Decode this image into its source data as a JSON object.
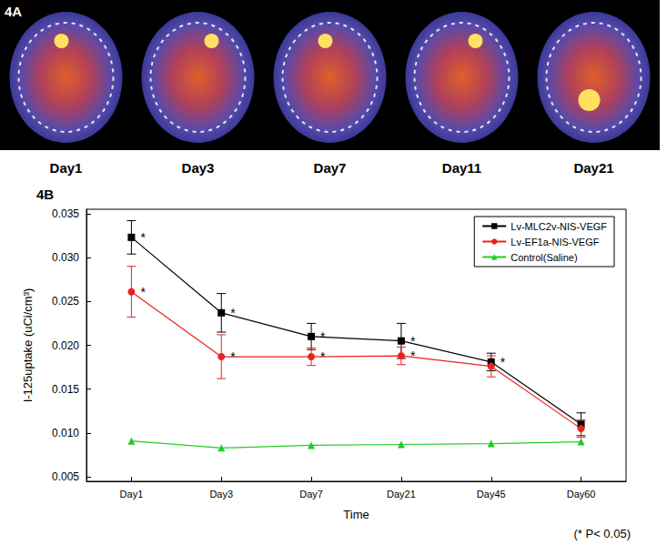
{
  "panel_a": {
    "label": "4A",
    "images": [
      "Day1",
      "Day3",
      "Day7",
      "Day11",
      "Day21"
    ]
  },
  "chart_data": {
    "type": "line",
    "panel_label": "4B",
    "x_label": "Time",
    "y_label": "I-125uptake (uCi/cm³)",
    "note": "(* P< 0.05)",
    "categories": [
      "Day1",
      "Day3",
      "Day7",
      "Day21",
      "Day45",
      "Day60"
    ],
    "ylim": [
      0.0045,
      0.0355
    ],
    "yticks": [
      0.005,
      {
        "value": 0.01,
        "label": "0.010"
      },
      0.015,
      {
        "value": 0.02,
        "label": "0.020"
      },
      0.025,
      {
        "value": 0.03,
        "label": "0.030"
      },
      0.035
    ],
    "grid": false,
    "legend": "upper right",
    "series": [
      {
        "name": "Lv-MLC2v-NIS-VEGF",
        "color": "#000000",
        "marker": "square",
        "values": [
          0.0323,
          0.0237,
          0.021,
          0.0205,
          0.0181,
          0.011
        ],
        "errors": [
          0.0019,
          0.0022,
          0.0015,
          0.002,
          0.001,
          0.0013
        ],
        "annotations": [
          "*",
          "*",
          "*",
          "*",
          "*",
          null
        ]
      },
      {
        "name": "Lv-EF1a-NIS-VEGF",
        "color": "#e8231c",
        "marker": "circle",
        "values": [
          0.0261,
          0.0187,
          0.0187,
          0.0188,
          0.0176,
          0.0105
        ],
        "errors": [
          0.0029,
          0.0025,
          0.001,
          0.001,
          0.0012,
          0.001
        ],
        "annotations": [
          "*",
          "*",
          "*",
          "*",
          null,
          null
        ]
      },
      {
        "name": "Control(Saline)",
        "color": "#22cc22",
        "marker": "triangle",
        "values": [
          0.0091,
          0.0083,
          0.0086,
          0.0087,
          0.0088,
          0.009
        ]
      }
    ]
  }
}
